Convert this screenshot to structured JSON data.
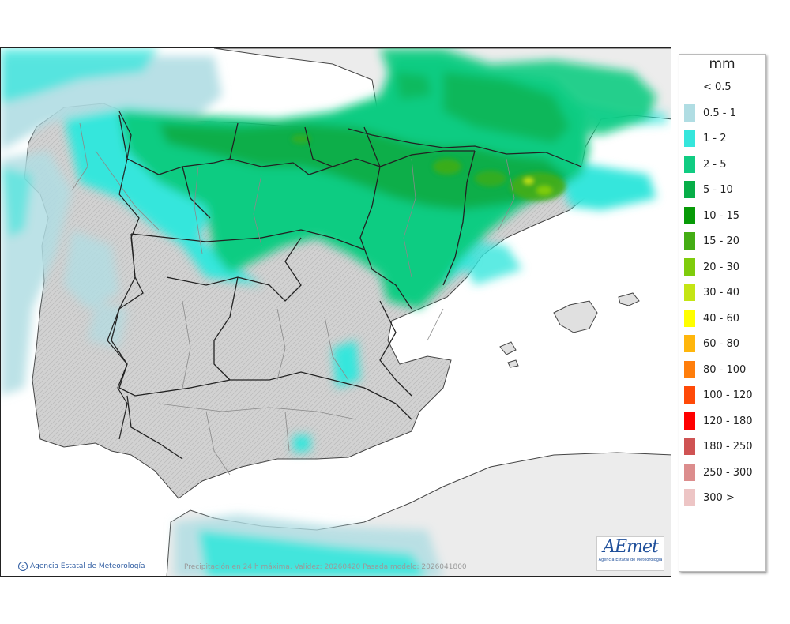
{
  "legend": {
    "unit": "mm",
    "entries": [
      {
        "label": "< 0.5",
        "color": "#ffffff"
      },
      {
        "label": "0.5 - 1",
        "color": "#b0dde3"
      },
      {
        "label": "1 - 2",
        "color": "#35e6dc"
      },
      {
        "label": "2 - 5",
        "color": "#10cc82"
      },
      {
        "label": "5 - 10",
        "color": "#07ae48"
      },
      {
        "label": "10 - 15",
        "color": "#079a07"
      },
      {
        "label": "15 - 20",
        "color": "#44ad14"
      },
      {
        "label": "20 - 30",
        "color": "#7fcc0c"
      },
      {
        "label": "30 - 40",
        "color": "#c4e514"
      },
      {
        "label": "40 - 60",
        "color": "#ffff00"
      },
      {
        "label": "60 - 80",
        "color": "#ffb60c"
      },
      {
        "label": "80 - 100",
        "color": "#ff7e0b"
      },
      {
        "label": "100 - 120",
        "color": "#ff4a08"
      },
      {
        "label": "120 - 180",
        "color": "#ff0000"
      },
      {
        "label": "180 - 250",
        "color": "#cf5353"
      },
      {
        "label": "250 - 300",
        "color": "#dc8d8d"
      },
      {
        "label": "300 >",
        "color": "#edc5c5"
      }
    ]
  },
  "footer": {
    "credit": "Agencia Estatal de Meteorología",
    "caption": "Precipitación en 24 h máxima. Validez: 20260420 Pasada modelo: 2026041800"
  },
  "logo": {
    "word": "AEmet",
    "sub": "Agencia Estatal de Meteorología"
  }
}
